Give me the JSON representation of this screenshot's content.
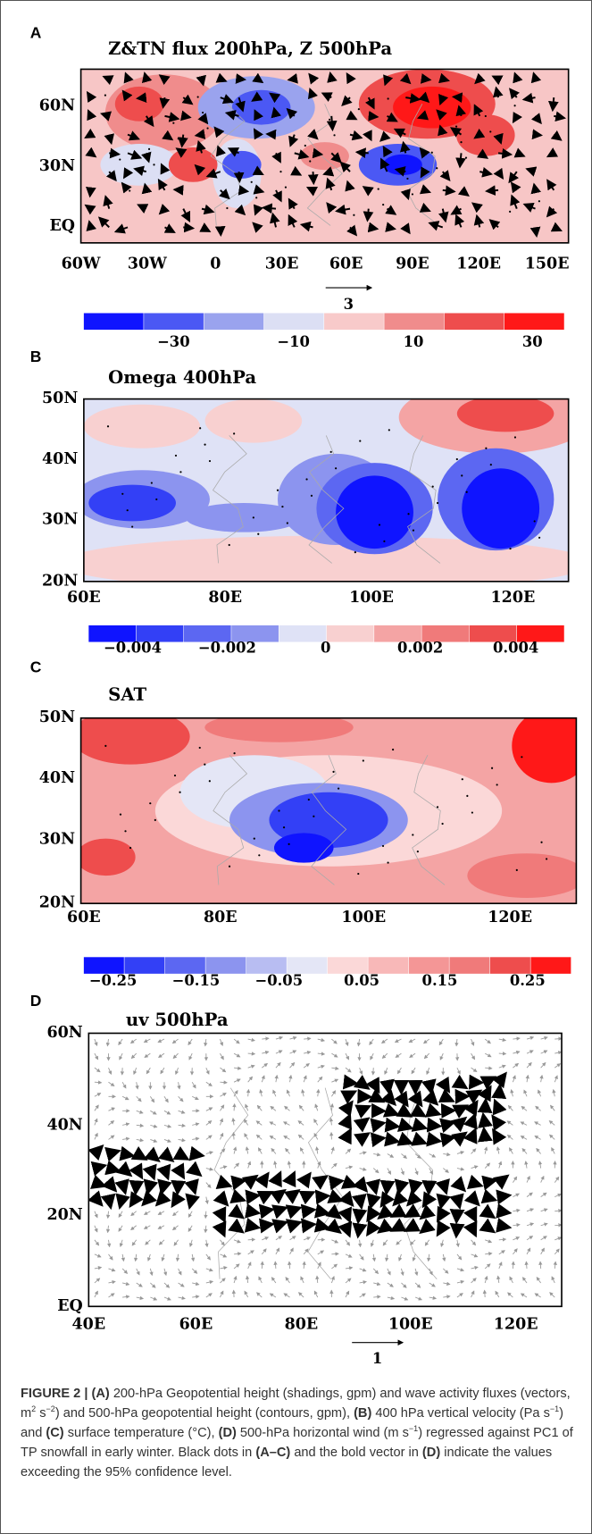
{
  "figure": {
    "panels": [
      {
        "letter": "A",
        "title": "Z&TN flux 200hPa, Z 500hPa",
        "y_labels": [
          "60N",
          "30N",
          "EQ"
        ],
        "x_labels": [
          "60W",
          "30W",
          "0",
          "30E",
          "60E",
          "90E",
          "120E",
          "150E"
        ],
        "colorbar_labels": [
          "−30",
          "−10",
          "10",
          "30"
        ],
        "scale_label": "3"
      },
      {
        "letter": "B",
        "title": "Omega 400hPa",
        "y_labels": [
          "50N",
          "40N",
          "30N",
          "20N"
        ],
        "x_labels": [
          "60E",
          "80E",
          "100E",
          "120E"
        ],
        "colorbar_labels": [
          "−0.004",
          "−0.002",
          "0",
          "0.002",
          "0.004"
        ]
      },
      {
        "letter": "C",
        "title": "SAT",
        "y_labels": [
          "50N",
          "40N",
          "30N",
          "20N"
        ],
        "x_labels": [
          "60E",
          "80E",
          "100E",
          "120E"
        ],
        "colorbar_labels": [
          "−0.25",
          "−0.15",
          "−0.05",
          "0.05",
          "0.15",
          "0.25"
        ]
      },
      {
        "letter": "D",
        "title": "uv 500hPa",
        "y_labels": [
          "60N",
          "40N",
          "20N",
          "EQ"
        ],
        "x_labels": [
          "40E",
          "60E",
          "80E",
          "100E",
          "120E"
        ],
        "scale_label": "1"
      }
    ]
  },
  "caption": [
    {
      "text": "FIGURE 2 | ",
      "style": "bold"
    },
    {
      "text": "(A)",
      "style": "bold"
    },
    {
      "text": " 200-hPa Geopotential height (shadings, gpm) and wave activity fluxes (vectors, m",
      "style": "normal"
    },
    {
      "text": "2",
      "style": "sup"
    },
    {
      "text": " s",
      "style": "normal"
    },
    {
      "text": "−2",
      "style": "sup"
    },
    {
      "text": ") and 500-hPa geopotential height (contours, gpm), ",
      "style": "normal"
    },
    {
      "text": "(B)",
      "style": "bold"
    },
    {
      "text": " 400 hPa vertical velocity (Pa s",
      "style": "normal"
    },
    {
      "text": "−1",
      "style": "sup"
    },
    {
      "text": ") and ",
      "style": "normal"
    },
    {
      "text": "(C)",
      "style": "bold"
    },
    {
      "text": " surface temperature (°C), ",
      "style": "normal"
    },
    {
      "text": "(D)",
      "style": "bold"
    },
    {
      "text": " 500-hPa horizontal wind (m s",
      "style": "normal"
    },
    {
      "text": "−1",
      "style": "sup"
    },
    {
      "text": ") regressed against PC1 of TP snowfall in early winter. Black dots in ",
      "style": "normal"
    },
    {
      "text": "(A–C)",
      "style": "bold"
    },
    {
      "text": " and the bold vector in ",
      "style": "normal"
    },
    {
      "text": "(D)",
      "style": "bold"
    },
    {
      "text": " indicate the values exceeding the 95% confidence level.",
      "style": "normal"
    }
  ]
}
